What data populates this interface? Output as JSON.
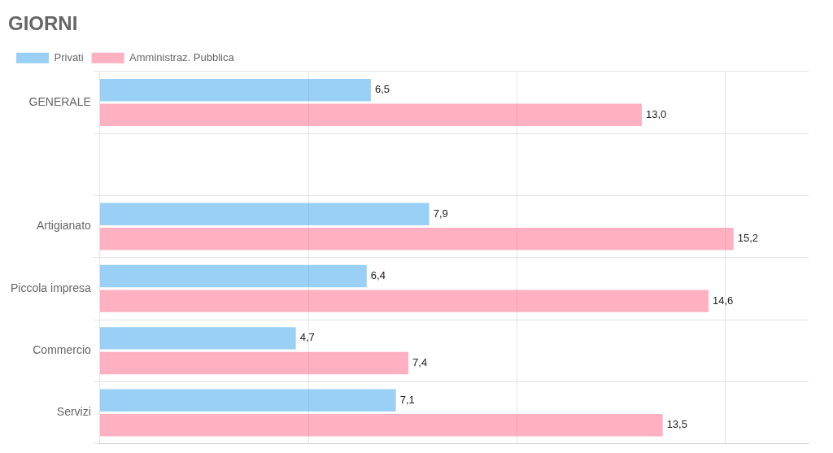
{
  "chart_data": {
    "type": "bar",
    "orientation": "horizontal",
    "title": "GIORNI",
    "categories": [
      "GENERALE",
      null,
      "Artigianato",
      "Piccola impresa",
      "Commercio",
      "Servizi"
    ],
    "series": [
      {
        "name": "Privati",
        "values": [
          6.5,
          null,
          7.9,
          6.4,
          4.7,
          7.1
        ],
        "value_labels": [
          "6,5",
          null,
          "7,9",
          "6,4",
          "4,7",
          "7,1"
        ]
      },
      {
        "name": "Amministraz. Pubblica",
        "values": [
          13.0,
          null,
          15.2,
          14.6,
          7.4,
          13.5
        ],
        "value_labels": [
          "13,0",
          null,
          "15,2",
          "14,6",
          "7,4",
          "13,5"
        ]
      }
    ],
    "xlim": [
      0,
      17
    ],
    "xticks": [
      5,
      10,
      15
    ],
    "grid": true,
    "legend": "upper left",
    "data_labels": true,
    "tick_labels": "y"
  }
}
